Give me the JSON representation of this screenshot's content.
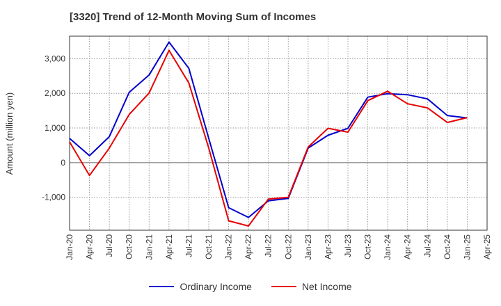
{
  "chart_data": {
    "type": "line",
    "title": "[3320]  Trend of 12-Month Moving Sum of Incomes",
    "xlabel": "",
    "ylabel": "Amount (million yen)",
    "ylim": [
      -1950,
      3650
    ],
    "yticks": [
      -1000,
      0,
      1000,
      2000,
      3000
    ],
    "ytick_labels": [
      "-1,000",
      "0",
      "1,000",
      "2,000",
      "3,000"
    ],
    "x": [
      "Jan-20",
      "Apr-20",
      "Jul-20",
      "Oct-20",
      "Jan-21",
      "Apr-21",
      "Jul-21",
      "Oct-21",
      "Jan-22",
      "Apr-22",
      "Jul-22",
      "Oct-22",
      "Jan-23",
      "Apr-23",
      "Jul-23",
      "Oct-23",
      "Jan-24",
      "Apr-24",
      "Jul-24",
      "Oct-24",
      "Jan-25",
      "Apr-25"
    ],
    "grid": true,
    "legend_position": "bottom",
    "series": [
      {
        "name": "Ordinary Income",
        "color": "#0000cc",
        "values": [
          700,
          200,
          750,
          2030,
          2530,
          3480,
          2720,
          700,
          -1300,
          -1580,
          -1100,
          -1030,
          420,
          790,
          990,
          1890,
          1990,
          1960,
          1840,
          1360,
          1290,
          null
        ]
      },
      {
        "name": "Net Income",
        "color": "#e60000",
        "values": [
          600,
          -370,
          420,
          1390,
          2010,
          3240,
          2300,
          420,
          -1680,
          -1830,
          -1050,
          -1000,
          450,
          990,
          880,
          1790,
          2060,
          1700,
          1580,
          1160,
          1300,
          null
        ]
      }
    ]
  }
}
